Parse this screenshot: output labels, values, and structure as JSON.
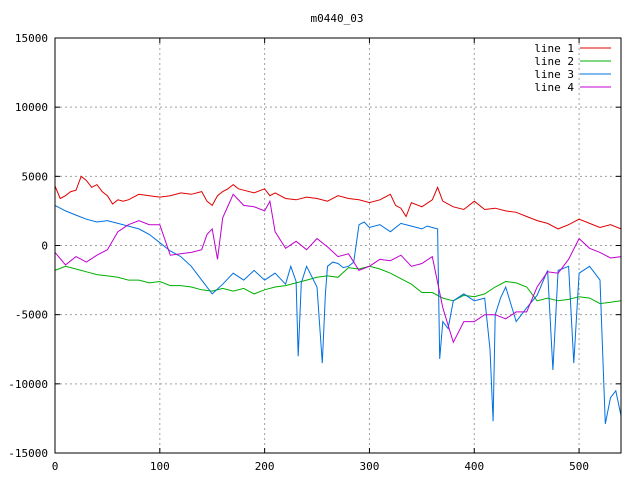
{
  "chart_data": {
    "type": "line",
    "title": "m0440_03",
    "xlabel": "",
    "ylabel": "",
    "xlim": [
      0,
      540
    ],
    "ylim": [
      -15000,
      15000
    ],
    "xticks": [
      0,
      100,
      200,
      300,
      400,
      500
    ],
    "yticks": [
      -15000,
      -10000,
      -5000,
      0,
      5000,
      10000,
      15000
    ],
    "grid": true,
    "legend_position": "top-right",
    "series": [
      {
        "name": "line 1",
        "color": "#e00000",
        "x": [
          0,
          5,
          10,
          15,
          20,
          25,
          30,
          35,
          40,
          45,
          50,
          55,
          60,
          65,
          70,
          80,
          90,
          100,
          110,
          120,
          130,
          140,
          145,
          150,
          155,
          160,
          165,
          170,
          175,
          180,
          190,
          200,
          205,
          210,
          220,
          230,
          240,
          250,
          260,
          270,
          280,
          290,
          300,
          310,
          320,
          325,
          330,
          335,
          340,
          350,
          360,
          365,
          370,
          380,
          390,
          400,
          410,
          420,
          430,
          440,
          450,
          460,
          470,
          480,
          490,
          500,
          510,
          520,
          530,
          540
        ],
        "y": [
          4300,
          3400,
          3600,
          3900,
          4000,
          5000,
          4700,
          4200,
          4400,
          3900,
          3600,
          3000,
          3300,
          3200,
          3300,
          3700,
          3600,
          3500,
          3600,
          3800,
          3700,
          3900,
          3200,
          2900,
          3600,
          3900,
          4100,
          4400,
          4100,
          4000,
          3800,
          4100,
          3600,
          3800,
          3400,
          3300,
          3500,
          3400,
          3200,
          3600,
          3400,
          3300,
          3100,
          3300,
          3700,
          2900,
          2700,
          2100,
          3100,
          2800,
          3300,
          4200,
          3200,
          2800,
          2600,
          3200,
          2600,
          2700,
          2500,
          2400,
          2100,
          1800,
          1600,
          1200,
          1500,
          1900,
          1600,
          1300,
          1500,
          1200
        ]
      },
      {
        "name": "line 2",
        "color": "#00b000",
        "x": [
          0,
          10,
          20,
          30,
          40,
          50,
          60,
          70,
          80,
          90,
          100,
          110,
          120,
          130,
          140,
          150,
          160,
          170,
          180,
          190,
          200,
          210,
          220,
          230,
          240,
          250,
          260,
          270,
          280,
          290,
          300,
          310,
          320,
          330,
          340,
          350,
          360,
          370,
          380,
          390,
          400,
          410,
          420,
          430,
          440,
          450,
          460,
          470,
          480,
          490,
          500,
          510,
          520,
          530,
          540
        ],
        "y": [
          -1800,
          -1500,
          -1700,
          -1900,
          -2100,
          -2200,
          -2300,
          -2500,
          -2500,
          -2700,
          -2600,
          -2900,
          -2900,
          -3000,
          -3200,
          -3300,
          -3100,
          -3300,
          -3100,
          -3500,
          -3200,
          -3000,
          -2900,
          -2700,
          -2500,
          -2300,
          -2200,
          -2300,
          -1600,
          -1700,
          -1500,
          -1700,
          -2000,
          -2400,
          -2800,
          -3400,
          -3400,
          -3800,
          -4000,
          -3600,
          -3700,
          -3500,
          -3000,
          -2600,
          -2700,
          -3000,
          -4000,
          -3800,
          -4000,
          -3900,
          -3700,
          -3800,
          -4200,
          -4100,
          -4000
        ]
      },
      {
        "name": "line 3",
        "color": "#0070e0",
        "x": [
          0,
          10,
          20,
          30,
          40,
          50,
          60,
          70,
          80,
          90,
          100,
          110,
          120,
          130,
          140,
          150,
          160,
          170,
          180,
          190,
          200,
          210,
          220,
          225,
          230,
          232,
          235,
          240,
          250,
          255,
          258,
          260,
          265,
          270,
          275,
          280,
          285,
          290,
          295,
          300,
          310,
          320,
          330,
          340,
          350,
          355,
          360,
          365,
          367,
          370,
          375,
          380,
          390,
          400,
          410,
          415,
          418,
          420,
          425,
          430,
          440,
          450,
          460,
          470,
          475,
          480,
          490,
          495,
          500,
          510,
          520,
          525,
          530,
          535,
          540
        ],
        "y": [
          2900,
          2500,
          2200,
          1900,
          1700,
          1800,
          1600,
          1400,
          1200,
          800,
          200,
          -400,
          -800,
          -1500,
          -2500,
          -3500,
          -2800,
          -2000,
          -2500,
          -1800,
          -2500,
          -2000,
          -2800,
          -1500,
          -2600,
          -8000,
          -2700,
          -1500,
          -3000,
          -8500,
          -3500,
          -1500,
          -1200,
          -1300,
          -1600,
          -1500,
          -1200,
          1500,
          1700,
          1300,
          1500,
          1000,
          1600,
          1400,
          1200,
          1400,
          1300,
          1200,
          -8200,
          -5500,
          -6000,
          -4000,
          -3500,
          -4000,
          -3800,
          -7500,
          -12700,
          -5000,
          -3800,
          -3000,
          -5500,
          -4500,
          -3600,
          -1800,
          -9000,
          -1800,
          -1500,
          -8500,
          -2000,
          -1500,
          -2500,
          -12900,
          -11000,
          -10500,
          -12300
        ]
      },
      {
        "name": "line 4",
        "color": "#c000d0",
        "x": [
          0,
          10,
          20,
          30,
          40,
          50,
          60,
          70,
          80,
          90,
          100,
          110,
          120,
          130,
          140,
          145,
          150,
          155,
          160,
          170,
          180,
          190,
          200,
          205,
          210,
          220,
          230,
          240,
          250,
          260,
          270,
          280,
          290,
          300,
          310,
          320,
          330,
          340,
          350,
          360,
          370,
          380,
          390,
          400,
          410,
          420,
          430,
          440,
          450,
          460,
          470,
          480,
          490,
          500,
          510,
          520,
          530,
          540
        ],
        "y": [
          -500,
          -1400,
          -800,
          -1200,
          -700,
          -300,
          1000,
          1500,
          1800,
          1500,
          1500,
          -700,
          -600,
          -500,
          -300,
          800,
          1200,
          -1000,
          2000,
          3700,
          2900,
          2800,
          2500,
          3200,
          1000,
          -200,
          300,
          -300,
          500,
          -100,
          -800,
          -600,
          -1800,
          -1500,
          -1000,
          -1100,
          -700,
          -1500,
          -1300,
          -800,
          -4500,
          -7000,
          -5500,
          -5500,
          -5000,
          -5000,
          -5300,
          -4800,
          -4800,
          -3000,
          -1900,
          -2000,
          -1000,
          500,
          -200,
          -500,
          -900,
          -800
        ]
      }
    ]
  }
}
